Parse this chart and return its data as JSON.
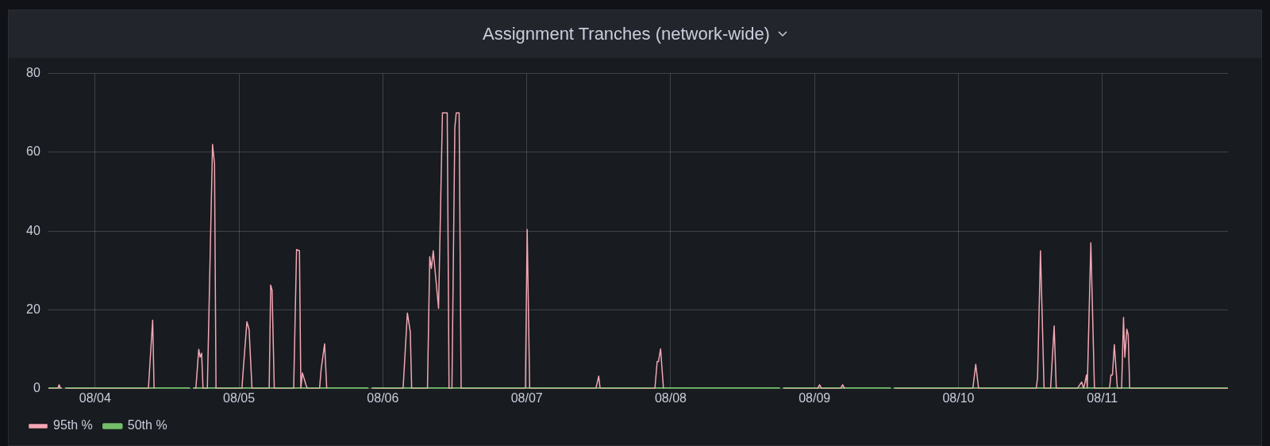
{
  "chart_data": {
    "type": "line",
    "title": "Assignment Tranches (network-wide)",
    "xlim": [
      "--08-03T16:11",
      "--08-11T20:57"
    ],
    "xticks": [
      {
        "value": "--08-04",
        "label": "08/04"
      },
      {
        "value": "--08-05",
        "label": "08/05"
      },
      {
        "value": "--08-06",
        "label": "08/06"
      },
      {
        "value": "--08-07",
        "label": "08/07"
      },
      {
        "value": "--08-08",
        "label": "08/08"
      },
      {
        "value": "--08-09",
        "label": "08/09"
      },
      {
        "value": "--08-10",
        "label": "08/10"
      },
      {
        "value": "--08-11",
        "label": "08/11"
      }
    ],
    "ylim": [
      0,
      80
    ],
    "yticks": [
      0,
      20,
      40,
      60,
      80
    ],
    "grid": true,
    "legend": "bottom left",
    "series": [
      {
        "name": "95th %",
        "color": "#f2a7b4",
        "x": [
          "--08-03T16:11",
          "--08-03T17:46",
          "--08-03T18:00",
          "--08-03T18:14",
          "--08-03T18:43",
          "--08-03T19:12",
          "--08-04T08:53",
          "--08-04T09:07",
          "--08-04T09:36",
          "--08-04T09:50",
          "--08-04T16:05",
          "--08-04T16:34",
          "--08-04T16:48",
          "--08-04T17:17",
          "--08-04T17:31",
          "--08-04T17:46",
          "--08-04T18:00",
          "--08-04T18:43",
          "--08-04T19:35",
          "--08-04T19:55",
          "--08-04T20:10",
          "--08-05T00:29",
          "--08-05T00:43",
          "--08-05T01:19",
          "--08-05T01:41",
          "--08-05T02:10",
          "--08-05T05:02",
          "--08-05T05:17",
          "--08-05T05:31",
          "--08-05T05:53",
          "--08-05T09:07",
          "--08-05T09:36",
          "--08-05T10:05",
          "--08-05T10:19",
          "--08-05T10:34",
          "--08-05T11:10",
          "--08-05T11:24",
          "--08-05T13:26",
          "--08-05T13:41",
          "--08-05T14:17",
          "--08-05T14:38",
          "--08-05T21:50",
          "--08-05T22:19",
          "--08-06T03:22",
          "--08-06T04:05",
          "--08-06T04:34",
          "--08-06T04:48",
          "--08-06T07:26",
          "--08-06T07:49",
          "--08-06T08:05",
          "--08-06T08:24",
          "--08-06T09:17",
          "--08-06T09:56",
          "--08-06T10:44",
          "--08-06T11:02",
          "--08-06T11:31",
          "--08-06T12:00",
          "--08-06T12:14",
          "--08-06T12:43",
          "--08-06T13:03",
          "--08-06T23:46",
          "--08-07T00:04",
          "--08-07T00:29",
          "--08-07T11:31",
          "--08-07T12:00",
          "--08-07T12:14",
          "--08-07T21:22",
          "--08-07T21:45",
          "--08-07T21:58",
          "--08-07T22:19",
          "--08-07T22:48",
          "--08-08T18:29",
          "--08-08T18:58",
          "--08-09T00:29",
          "--08-09T00:50",
          "--08-09T01:12",
          "--08-09T04:19",
          "--08-09T04:41",
          "--08-09T05:02",
          "--08-09T12:58",
          "--08-09T13:26",
          "--08-10T02:24",
          "--08-10T02:53",
          "--08-10T03:22",
          "--08-10T12:58",
          "--08-10T13:12",
          "--08-10T13:41",
          "--08-10T14:17",
          "--08-10T15:22",
          "--08-10T15:58",
          "--08-10T16:19",
          "--08-10T19:48",
          "--08-10T20:33",
          "--08-10T20:53",
          "--08-10T21:22",
          "--08-10T21:29",
          "--08-10T22:05",
          "--08-10T22:41",
          "--08-11T01:12",
          "--08-11T01:26",
          "--08-11T01:41",
          "--08-11T02:00",
          "--08-11T02:31",
          "--08-11T03:13",
          "--08-11T03:32",
          "--08-11T03:45",
          "--08-11T04:05",
          "--08-11T04:19",
          "--08-11T04:34",
          "--08-11T20:57"
        ],
        "values": [
          0,
          0,
          1,
          0,
          null,
          0,
          0,
          5.7,
          17.4,
          0,
          null,
          0,
          0,
          10,
          8,
          9,
          0,
          0,
          62,
          57,
          0,
          0,
          5,
          17,
          15,
          0,
          0,
          26.3,
          25,
          0,
          0,
          35.3,
          35,
          0,
          4,
          1,
          0,
          0,
          4.7,
          11.4,
          0,
          null,
          0,
          0,
          19.2,
          14.5,
          0,
          0,
          33.5,
          30.5,
          35,
          20.4,
          70,
          70,
          0,
          0,
          66.3,
          70,
          70,
          0,
          0,
          40.4,
          0,
          0,
          3.2,
          0,
          0,
          6.9,
          6.9,
          10.1,
          0,
          null,
          0,
          0,
          1,
          0,
          0,
          1,
          0,
          null,
          0,
          0,
          6.2,
          0,
          0,
          2.8,
          35,
          0,
          0,
          15.9,
          0,
          0,
          1.7,
          0,
          3.5,
          0,
          37,
          0,
          0,
          3.5,
          3.5,
          11.2,
          0,
          0,
          18.1,
          8,
          15.1,
          13.7,
          0,
          0
        ]
      },
      {
        "name": "50th %",
        "color": "#73bf69",
        "x": [
          "--08-03T16:11",
          "--08-03T18:29",
          "--08-03T18:43",
          "--08-03T18:58",
          "--08-04T15:50",
          "--08-04T16:05",
          "--08-04T16:19",
          "--08-05T21:36",
          "--08-05T21:50",
          "--08-05T22:05",
          "--08-08T18:14",
          "--08-08T18:29",
          "--08-08T18:43",
          "--08-09T12:43",
          "--08-09T12:58",
          "--08-09T13:12",
          "--08-11T20:57"
        ],
        "values": [
          0,
          0,
          null,
          0,
          0,
          null,
          0,
          0,
          null,
          0,
          0,
          null,
          0,
          0,
          null,
          0,
          0
        ]
      }
    ]
  }
}
